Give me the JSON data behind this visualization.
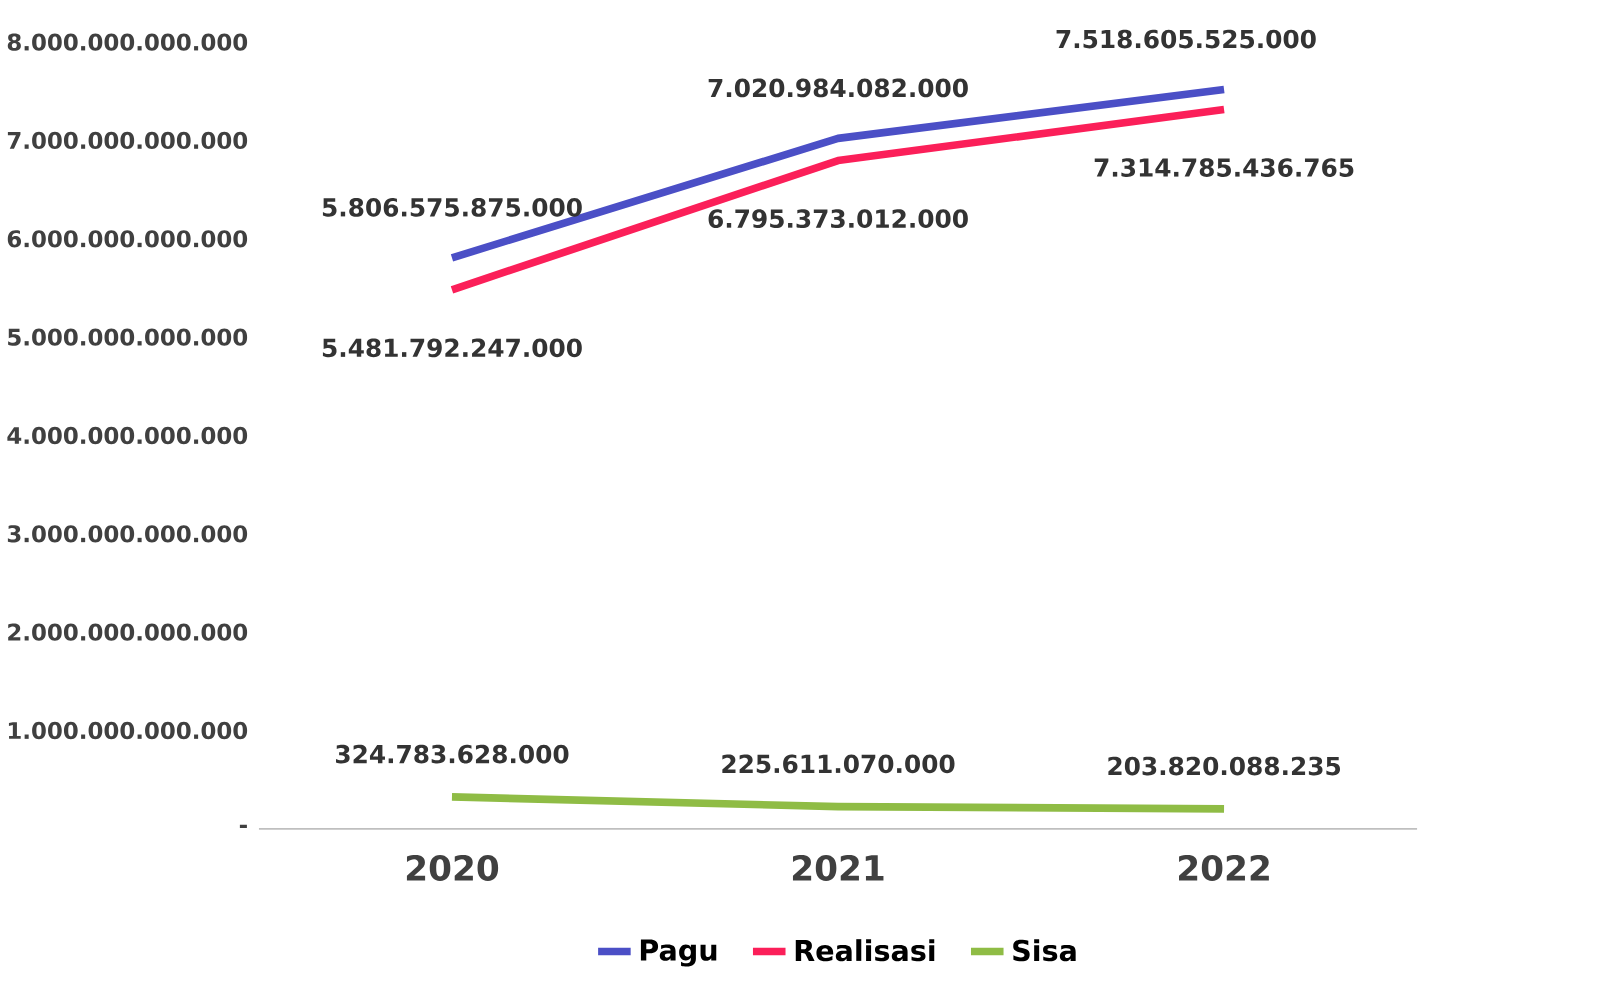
{
  "chart_data": {
    "type": "line",
    "categories": [
      "2020",
      "2021",
      "2022"
    ],
    "series": [
      {
        "name": "Pagu",
        "color": "#4b4fc6",
        "values": [
          5806575875000,
          7020984082000,
          7518605525000
        ],
        "value_labels": [
          "5.806.575.875.000",
          "7.020.984.082.000",
          "7.518.605.525.000"
        ]
      },
      {
        "name": "Realisasi",
        "color": "#fb1f59",
        "values": [
          5481792247000,
          6795373012000,
          7314785436765
        ],
        "value_labels": [
          "5.481.792.247.000",
          "6.795.373.012.000",
          "7.314.785.436.765"
        ]
      },
      {
        "name": "Sisa",
        "color": "#8fbc45",
        "values": [
          324783628000,
          225611070000,
          203820088235
        ],
        "value_labels": [
          "324.783.628.000",
          "225.611.070.000",
          "203.820.088.235"
        ]
      }
    ],
    "ylim": [
      0,
      8000000000000
    ],
    "yticks": [
      {
        "value": 0,
        "label": "-"
      },
      {
        "value": 1000000000000,
        "label": "1.000.000.000.000"
      },
      {
        "value": 2000000000000,
        "label": "2.000.000.000.000"
      },
      {
        "value": 3000000000000,
        "label": "3.000.000.000.000"
      },
      {
        "value": 4000000000000,
        "label": "4.000.000.000.000"
      },
      {
        "value": 5000000000000,
        "label": "5.000.000.000.000"
      },
      {
        "value": 6000000000000,
        "label": "6.000.000.000.000"
      },
      {
        "value": 7000000000000,
        "label": "7.000.000.000.000"
      },
      {
        "value": 8000000000000,
        "label": "8.000.000.000.000"
      }
    ],
    "legend": "bottom",
    "marker": "none",
    "line_style": "solid",
    "grid": false
  }
}
